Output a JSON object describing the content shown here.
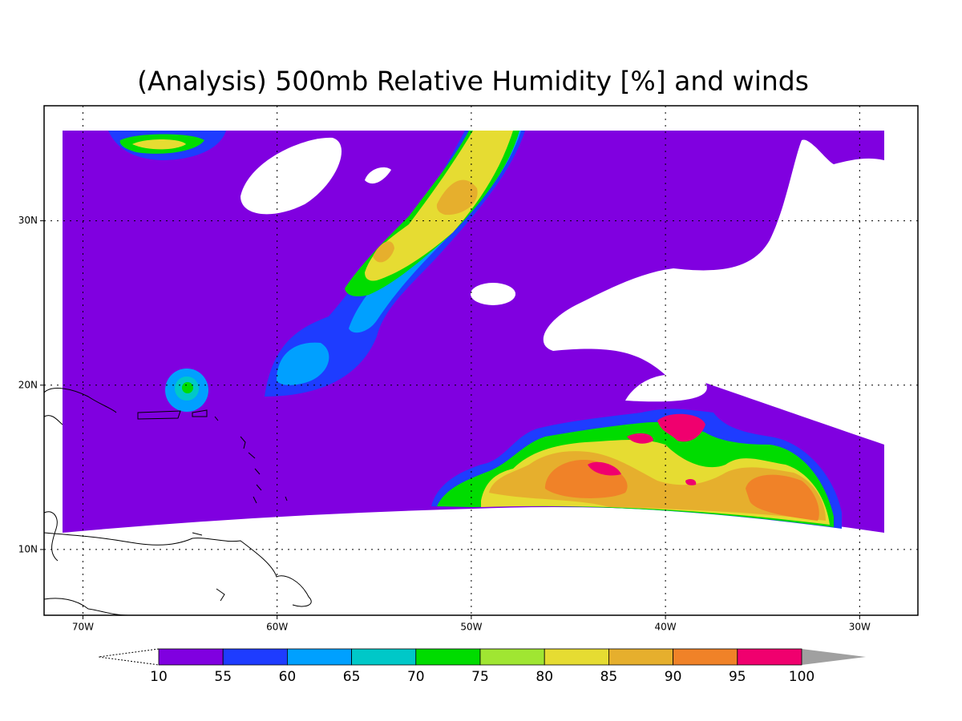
{
  "title": "(Analysis) 500mb Relative Humidity [%] and winds",
  "map": {
    "xlim": [
      -72,
      -27
    ],
    "ylim": [
      6,
      37
    ],
    "xticks": [
      {
        "value": -70,
        "label": "70W"
      },
      {
        "value": -60,
        "label": "60W"
      },
      {
        "value": -50,
        "label": "50W"
      },
      {
        "value": -40,
        "label": "40W"
      },
      {
        "value": -30,
        "label": "30W"
      }
    ],
    "yticks": [
      {
        "value": 10,
        "label": "10N"
      },
      {
        "value": 20,
        "label": "20N"
      },
      {
        "value": 30,
        "label": "30N"
      }
    ],
    "grid": true
  },
  "colorbar": {
    "levels": [
      10,
      55,
      60,
      65,
      70,
      75,
      80,
      85,
      90,
      95,
      100
    ],
    "colors": [
      "#8000e0",
      "#1e3cff",
      "#00a0ff",
      "#00c8c8",
      "#00dc00",
      "#a0e632",
      "#e6dc32",
      "#e6af2d",
      "#f08228",
      "#f0006e"
    ],
    "over_color": "#a0a0a0"
  }
}
